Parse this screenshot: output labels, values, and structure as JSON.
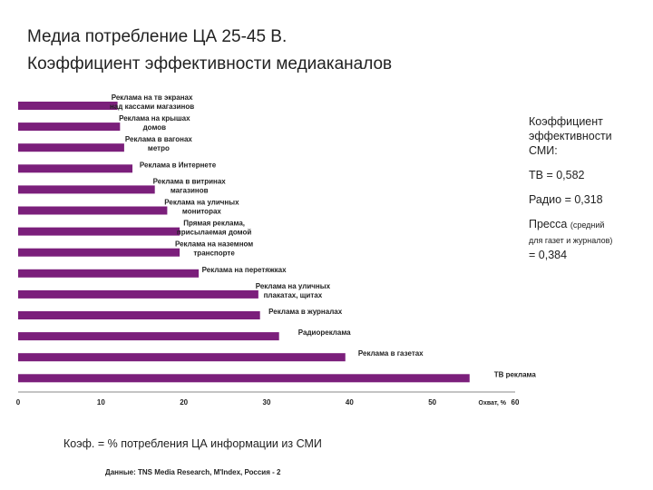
{
  "page": {
    "title_line1": "Медиа потребление ЦА 25-45 В.",
    "title_line2": "Коэффициент эффективности медиаканалов"
  },
  "sidebar": {
    "heading_lines": [
      "Коэффициент",
      "эффективности",
      "СМИ:"
    ],
    "tv": "ТВ = 0,582",
    "radio": "Радио = 0,318",
    "press_label": "Пресса",
    "press_note1": "(средний",
    "press_note2": "для газет и журналов)",
    "press_value": "= 0,384"
  },
  "footer": {
    "note": "Коэф. = % потребления ЦА информации из СМИ",
    "source": "Данные: TNS Media Research, M'Index, Россия - 2"
  },
  "chart_data": {
    "type": "bar",
    "orientation": "horizontal",
    "xlim": [
      0,
      60
    ],
    "xticks": [
      0,
      10,
      20,
      30,
      40,
      50,
      60
    ],
    "xlabel": "Охват, %",
    "grid": false,
    "bar_color": "#7b1f7b",
    "categories": [
      [
        "Реклама на тв экранах",
        "над кассами магазинов"
      ],
      [
        "Реклама на крышах",
        "домов"
      ],
      [
        "Реклама в вагонах",
        "метро"
      ],
      [
        "Реклама в Интернете"
      ],
      [
        "Реклама в витринах",
        "магазинов"
      ],
      [
        "Реклама на уличных",
        "мониторах"
      ],
      [
        "Прямая реклама,",
        "присылаемая домой"
      ],
      [
        "Реклама на наземном",
        "транспорте"
      ],
      [
        "Реклама на перетяжках"
      ],
      [
        "Реклама на уличных",
        "плакатах, щитах"
      ],
      [
        "Реклама в журналах"
      ],
      [
        "Радиореклама"
      ],
      [
        "Реклама в газетах"
      ],
      [
        "ТВ реклама"
      ]
    ],
    "values": [
      12,
      12.3,
      12.8,
      13.8,
      16.5,
      18,
      19.5,
      19.5,
      21.8,
      29,
      29.2,
      31.5,
      39.5,
      54.5
    ]
  }
}
